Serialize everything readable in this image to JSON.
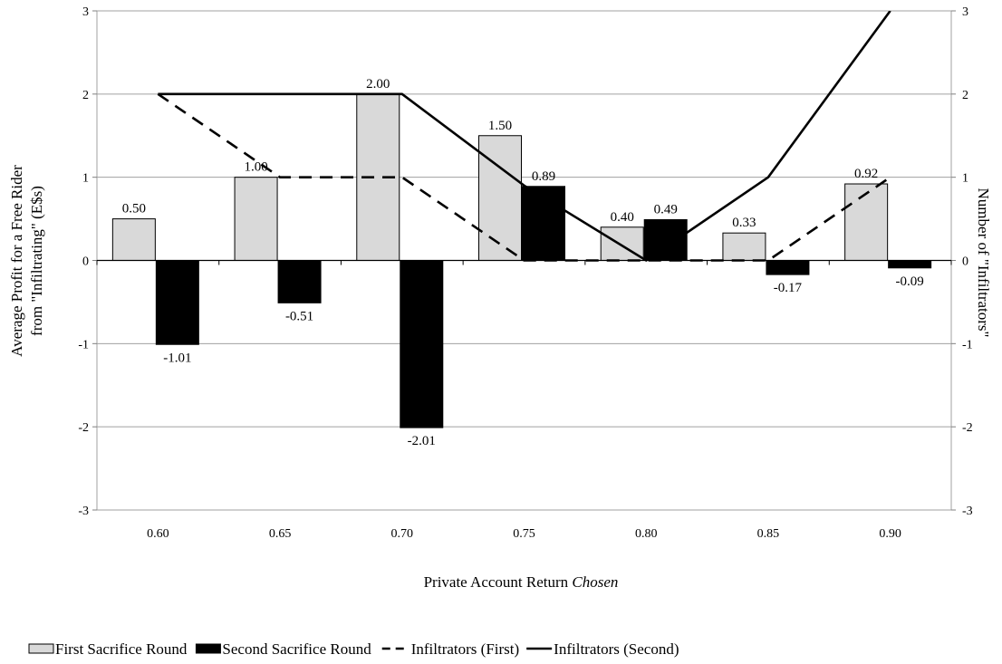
{
  "chart_data": {
    "type": "bar",
    "categories": [
      "0.60",
      "0.65",
      "0.70",
      "0.75",
      "0.80",
      "0.85",
      "0.90"
    ],
    "series": [
      {
        "name": "First Sacrifice Round",
        "kind": "bar",
        "axis": "left",
        "color": "#d9d9d9",
        "values": [
          0.5,
          1.0,
          2.0,
          1.5,
          0.4,
          0.33,
          0.92
        ],
        "labels": [
          "0.50",
          "1.00",
          "2.00",
          "1.50",
          "0.40",
          "0.33",
          "0.92"
        ]
      },
      {
        "name": "Second Sacrifice Round",
        "kind": "bar",
        "axis": "left",
        "color": "#000000",
        "values": [
          -1.01,
          -0.51,
          -2.01,
          0.89,
          0.49,
          -0.17,
          -0.09
        ],
        "labels": [
          "-1.01",
          "-0.51",
          "-2.01",
          "0.89",
          "0.49",
          "-0.17",
          "-0.09"
        ]
      },
      {
        "name": "Infiltrators (First)",
        "kind": "line",
        "axis": "right",
        "style": "dashed",
        "color": "#000000",
        "values": [
          2,
          1,
          1,
          0,
          0,
          0,
          1
        ]
      },
      {
        "name": "Infiltrators (Second)",
        "kind": "line",
        "axis": "right",
        "style": "solid",
        "color": "#000000",
        "values": [
          2,
          2,
          2,
          0.9,
          0,
          1,
          3
        ]
      }
    ],
    "xlabel_main": "Private Account Return",
    "xlabel_italic": "Chosen",
    "ylabel_line1": "Average Profit for a Free Rider",
    "ylabel_line2": "from \"Infiltrating\" (E$s)",
    "y2label": "Number of \"Infiltrators\"",
    "ylim": [
      -3,
      3
    ],
    "y2lim": [
      -3,
      3
    ],
    "yticks": [
      "-3",
      "-2",
      "-1",
      "0",
      "1",
      "2",
      "3"
    ],
    "y2ticks": [
      "-3",
      "-2",
      "-1",
      "0",
      "1",
      "2",
      "3"
    ],
    "grid": true,
    "legend": "bottom"
  }
}
